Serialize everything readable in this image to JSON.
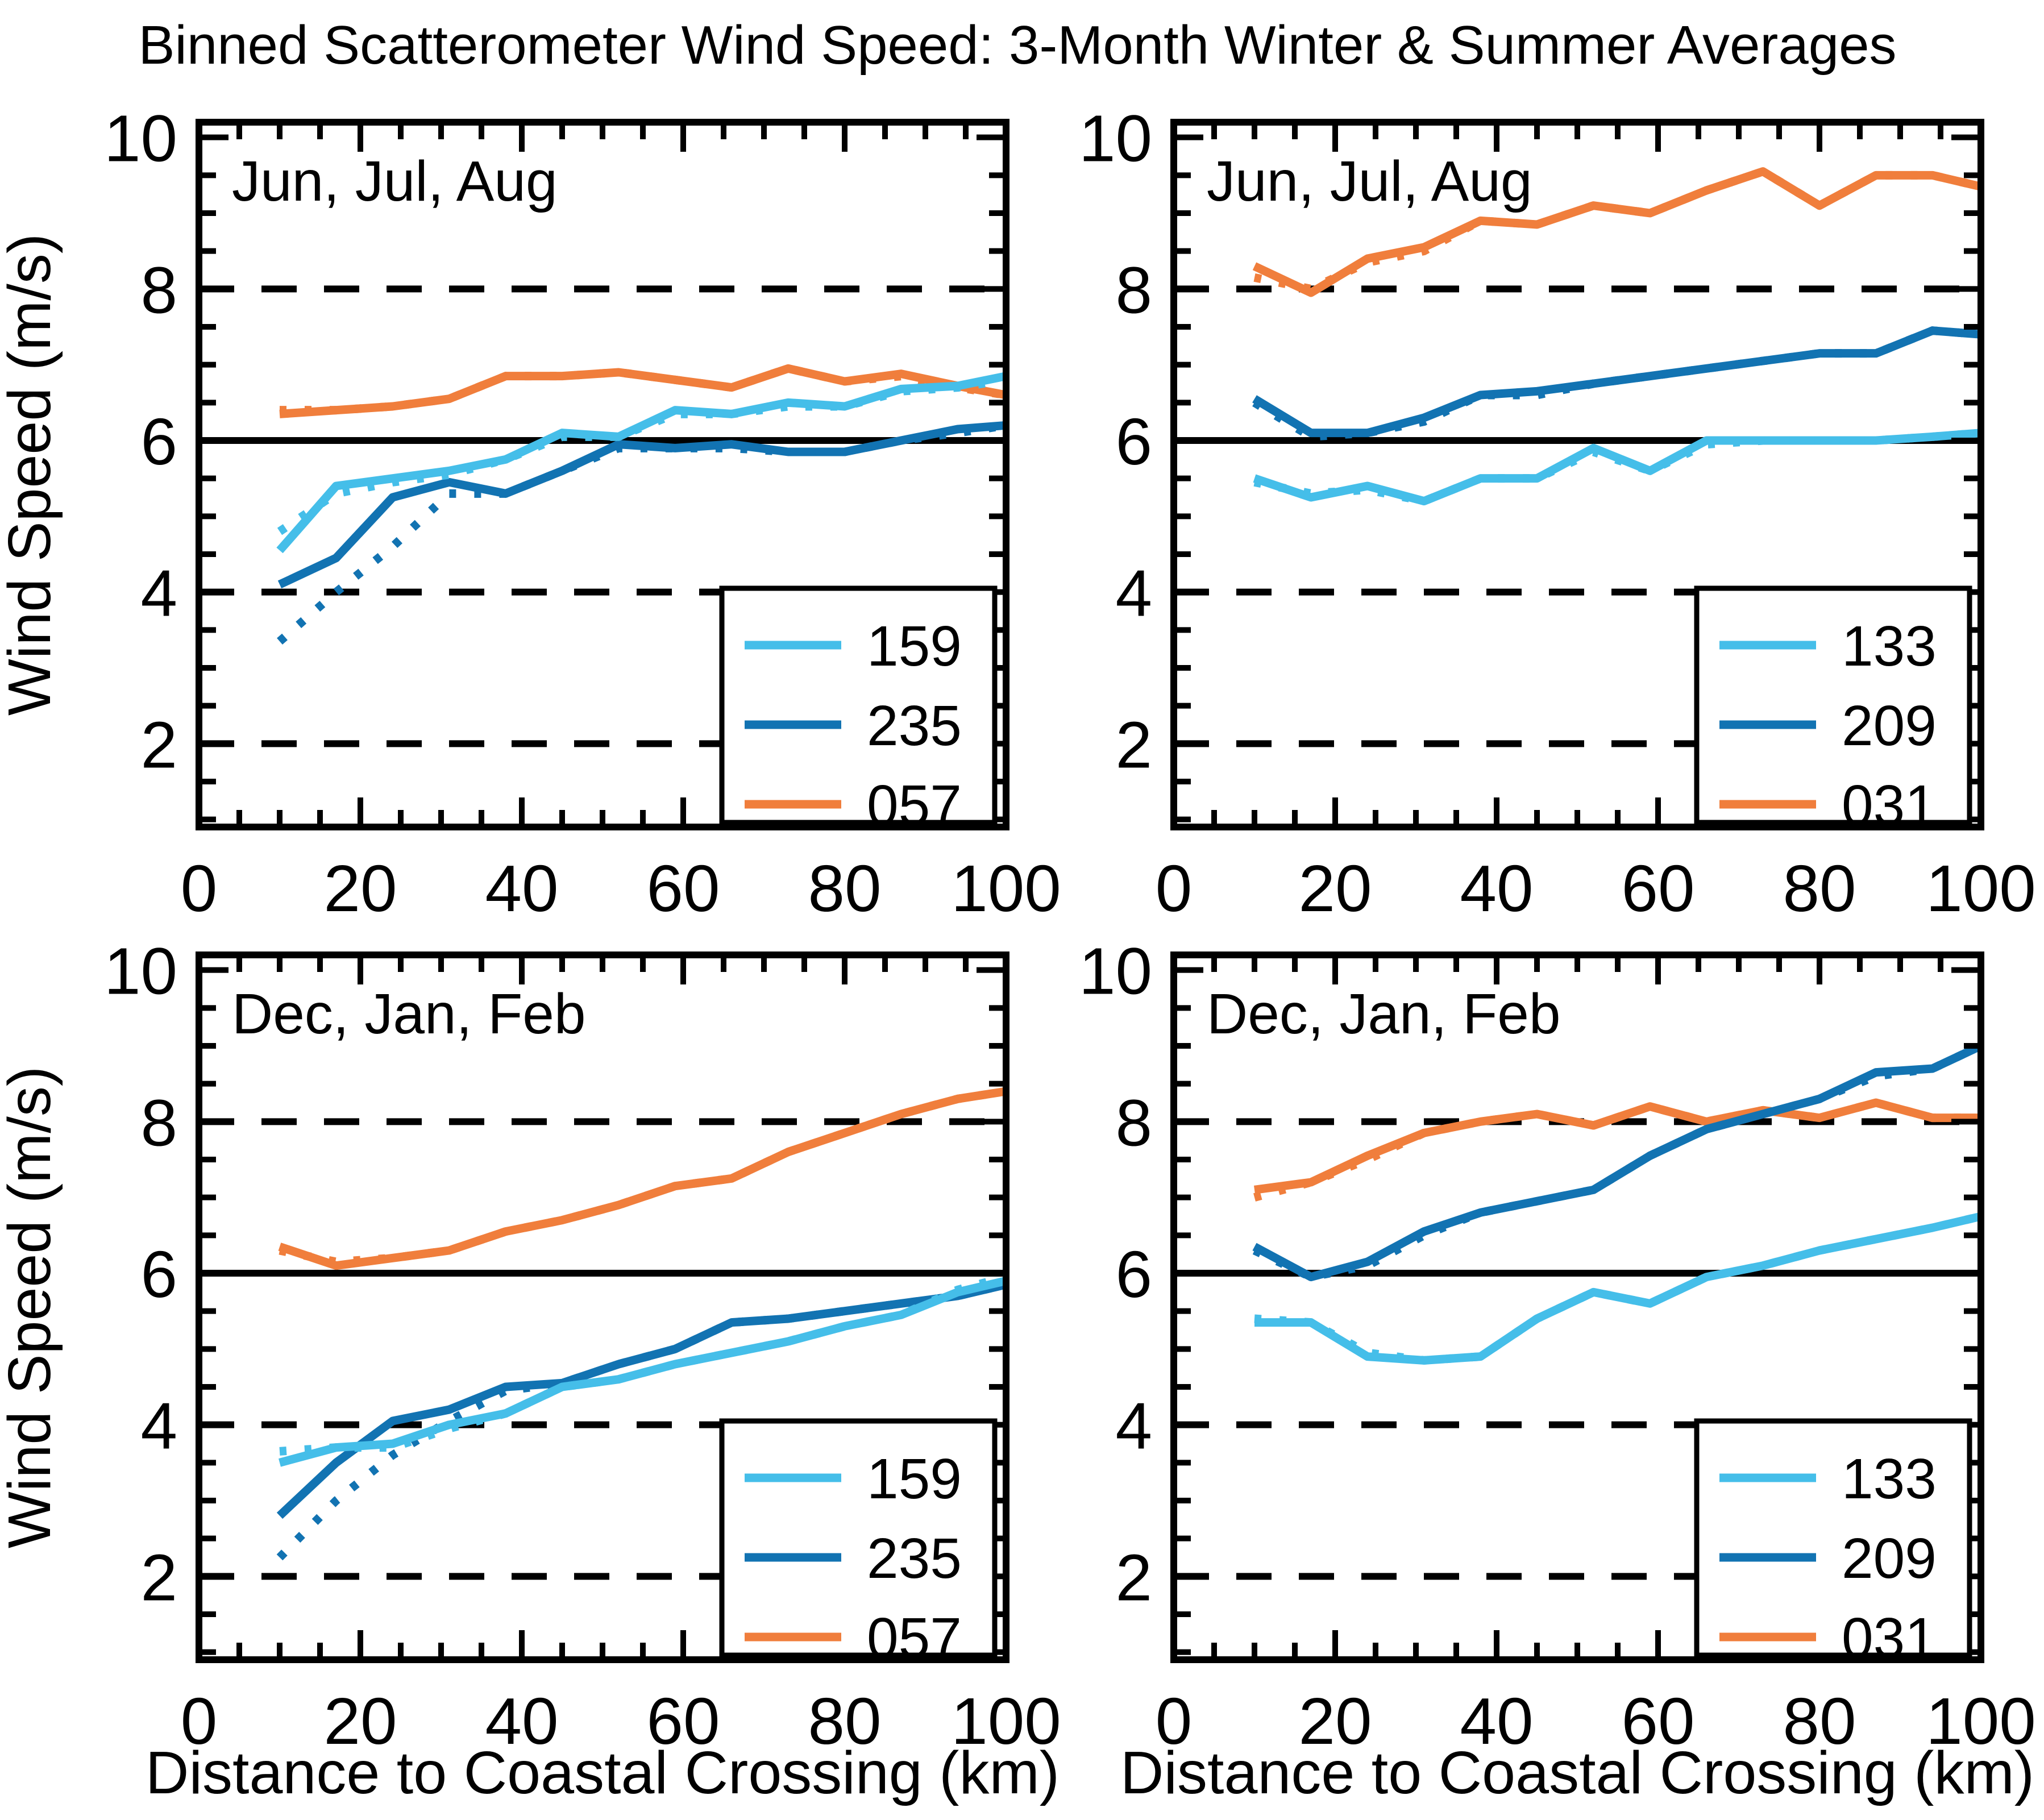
{
  "title": "Binned Scatterometer Wind Speed: 3-Month Winter & Summer Averages",
  "ylabel": "Wind Speed (m/s)",
  "xlabel": "Distance to Coastal Crossing (km)",
  "colors": {
    "light_blue": "#45BEE9",
    "dark_blue": "#1273B2",
    "orange": "#F07E3C",
    "axis": "#000000",
    "background": "#FFFFFF"
  },
  "axes": {
    "x_range": [
      0,
      100
    ],
    "y_range": [
      0.9,
      10.2
    ],
    "x_ticks": [
      0,
      20,
      40,
      60,
      80,
      100
    ],
    "x_tick_labels": [
      "0",
      "20",
      "40",
      "60",
      "80",
      "100"
    ],
    "y_ticks": [
      2,
      4,
      6,
      8,
      10
    ],
    "y_tick_labels": [
      "2",
      "4",
      "6",
      "8",
      "10"
    ],
    "x_minor_step": 5,
    "y_minor_step": 0.5,
    "solid_reference_line": 6,
    "dashed_reference_lines": [
      2,
      4,
      8
    ],
    "ticks_direction": "inward",
    "grid": "reference lines only"
  },
  "x_bins_km": [
    10,
    17,
    24,
    31,
    38,
    45,
    52,
    59,
    66,
    73,
    80,
    87,
    94,
    100
  ],
  "line_style_note": "Each station has a solid curve and a nearly-overlapping dotted companion curve that deviates mainly near the coast (x < 35 km).",
  "chart_data": [
    {
      "type": "line",
      "position": "top-left",
      "season": "Jun, Jul, Aug",
      "legend_position": "lower-right",
      "legend": [
        "159",
        "235",
        "057"
      ],
      "series": [
        {
          "name": "159",
          "color": "light_blue",
          "solid": [
            4.55,
            5.4,
            5.5,
            5.6,
            5.75,
            6.1,
            6.05,
            6.4,
            6.35,
            6.5,
            6.45,
            6.68,
            6.72,
            6.85
          ],
          "dotted": [
            4.8,
            5.3,
            5.45,
            5.55,
            5.75,
            6.05,
            6.05,
            6.35,
            6.35,
            6.45,
            6.45,
            6.65,
            6.7,
            6.8
          ]
        },
        {
          "name": "235",
          "color": "dark_blue",
          "solid": [
            4.1,
            4.45,
            5.25,
            5.45,
            5.3,
            5.6,
            5.95,
            5.9,
            5.95,
            5.85,
            5.85,
            6.0,
            6.15,
            6.2
          ],
          "dotted": [
            3.35,
            4.0,
            4.6,
            5.3,
            5.3,
            5.6,
            5.9,
            5.9,
            5.9,
            5.85,
            5.85,
            6.0,
            6.1,
            6.2
          ]
        },
        {
          "name": "057",
          "color": "orange",
          "solid": [
            6.35,
            6.4,
            6.45,
            6.55,
            6.85,
            6.85,
            6.9,
            6.8,
            6.7,
            6.95,
            6.78,
            6.88,
            6.72,
            6.6
          ],
          "dotted": [
            6.4,
            6.4,
            6.45,
            6.55,
            6.85,
            6.85,
            6.9,
            6.8,
            6.7,
            6.95,
            6.78,
            6.85,
            6.7,
            6.6
          ]
        }
      ]
    },
    {
      "type": "line",
      "position": "top-right",
      "season": "Jun, Jul, Aug",
      "legend_position": "lower-right",
      "legend": [
        "133",
        "209",
        "031"
      ],
      "series": [
        {
          "name": "133",
          "color": "light_blue",
          "solid": [
            5.5,
            5.25,
            5.4,
            5.2,
            5.5,
            5.5,
            5.9,
            5.6,
            6.0,
            6.0,
            6.0,
            6.0,
            6.05,
            6.1
          ],
          "dotted": [
            5.45,
            5.3,
            5.35,
            5.2,
            5.5,
            5.5,
            5.85,
            5.6,
            5.95,
            6.0,
            6.0,
            6.0,
            6.05,
            6.1
          ]
        },
        {
          "name": "209",
          "color": "dark_blue",
          "solid": [
            6.55,
            6.1,
            6.1,
            6.3,
            6.6,
            6.65,
            6.75,
            6.85,
            6.95,
            7.05,
            7.15,
            7.15,
            7.45,
            7.4
          ],
          "dotted": [
            6.5,
            6.05,
            6.1,
            6.25,
            6.6,
            6.6,
            6.75,
            6.85,
            6.95,
            7.05,
            7.15,
            7.15,
            7.45,
            7.4
          ]
        },
        {
          "name": "031",
          "color": "orange",
          "solid": [
            8.3,
            7.95,
            8.4,
            8.55,
            8.9,
            8.85,
            9.1,
            9.0,
            9.3,
            9.55,
            9.1,
            9.5,
            9.5,
            9.35
          ],
          "dotted": [
            8.15,
            8.0,
            8.35,
            8.5,
            8.9,
            8.85,
            9.1,
            9.0,
            9.3,
            9.55,
            9.1,
            9.5,
            9.5,
            9.35
          ]
        }
      ]
    },
    {
      "type": "line",
      "position": "bottom-left",
      "season": "Dec, Jan, Feb",
      "legend_position": "lower-right",
      "legend": [
        "159",
        "235",
        "057"
      ],
      "series": [
        {
          "name": "159",
          "color": "light_blue",
          "solid": [
            3.5,
            3.7,
            3.75,
            4.0,
            4.15,
            4.5,
            4.6,
            4.8,
            4.95,
            5.1,
            5.3,
            5.45,
            5.75,
            5.9
          ],
          "dotted": [
            3.65,
            3.7,
            3.7,
            3.95,
            4.15,
            4.5,
            4.6,
            4.8,
            4.95,
            5.1,
            5.3,
            5.45,
            5.78,
            5.95
          ]
        },
        {
          "name": "235",
          "color": "dark_blue",
          "solid": [
            2.8,
            3.5,
            4.05,
            4.2,
            4.5,
            4.55,
            4.8,
            5.0,
            5.35,
            5.4,
            5.5,
            5.6,
            5.7,
            5.85
          ],
          "dotted": [
            2.25,
            3.0,
            3.6,
            4.05,
            4.45,
            4.55,
            4.8,
            5.0,
            5.35,
            5.4,
            5.5,
            5.6,
            5.7,
            5.85
          ]
        },
        {
          "name": "057",
          "color": "orange",
          "solid": [
            6.35,
            6.1,
            6.2,
            6.3,
            6.55,
            6.7,
            6.9,
            7.15,
            7.25,
            7.6,
            7.85,
            8.1,
            8.3,
            8.4
          ],
          "dotted": [
            6.3,
            6.15,
            6.2,
            6.3,
            6.55,
            6.7,
            6.9,
            7.15,
            7.25,
            7.6,
            7.85,
            8.1,
            8.3,
            8.4
          ]
        }
      ]
    },
    {
      "type": "line",
      "position": "bottom-right",
      "season": "Dec, Jan, Feb",
      "legend_position": "lower-right",
      "legend": [
        "133",
        "209",
        "031"
      ],
      "series": [
        {
          "name": "133",
          "color": "light_blue",
          "solid": [
            5.35,
            5.35,
            4.9,
            4.85,
            4.9,
            5.4,
            5.75,
            5.6,
            5.95,
            6.1,
            6.3,
            6.45,
            6.6,
            6.75
          ],
          "dotted": [
            5.4,
            5.35,
            4.95,
            4.85,
            4.9,
            5.4,
            5.75,
            5.6,
            5.95,
            6.1,
            6.3,
            6.45,
            6.6,
            6.75
          ]
        },
        {
          "name": "209",
          "color": "dark_blue",
          "solid": [
            6.35,
            5.95,
            6.15,
            6.55,
            6.8,
            6.95,
            7.1,
            7.55,
            7.9,
            8.1,
            8.3,
            8.65,
            8.7,
            9.0
          ],
          "dotted": [
            6.3,
            5.95,
            6.1,
            6.5,
            6.8,
            6.95,
            7.1,
            7.55,
            7.9,
            8.1,
            8.3,
            8.6,
            8.7,
            9.0
          ]
        },
        {
          "name": "031",
          "color": "orange",
          "solid": [
            7.1,
            7.2,
            7.55,
            7.85,
            8.0,
            8.1,
            7.95,
            8.2,
            8.0,
            8.15,
            8.05,
            8.25,
            8.05,
            8.05
          ],
          "dotted": [
            7.0,
            7.2,
            7.5,
            7.85,
            8.0,
            8.1,
            7.95,
            8.2,
            8.0,
            8.15,
            8.05,
            8.25,
            8.05,
            8.05
          ]
        }
      ]
    }
  ]
}
